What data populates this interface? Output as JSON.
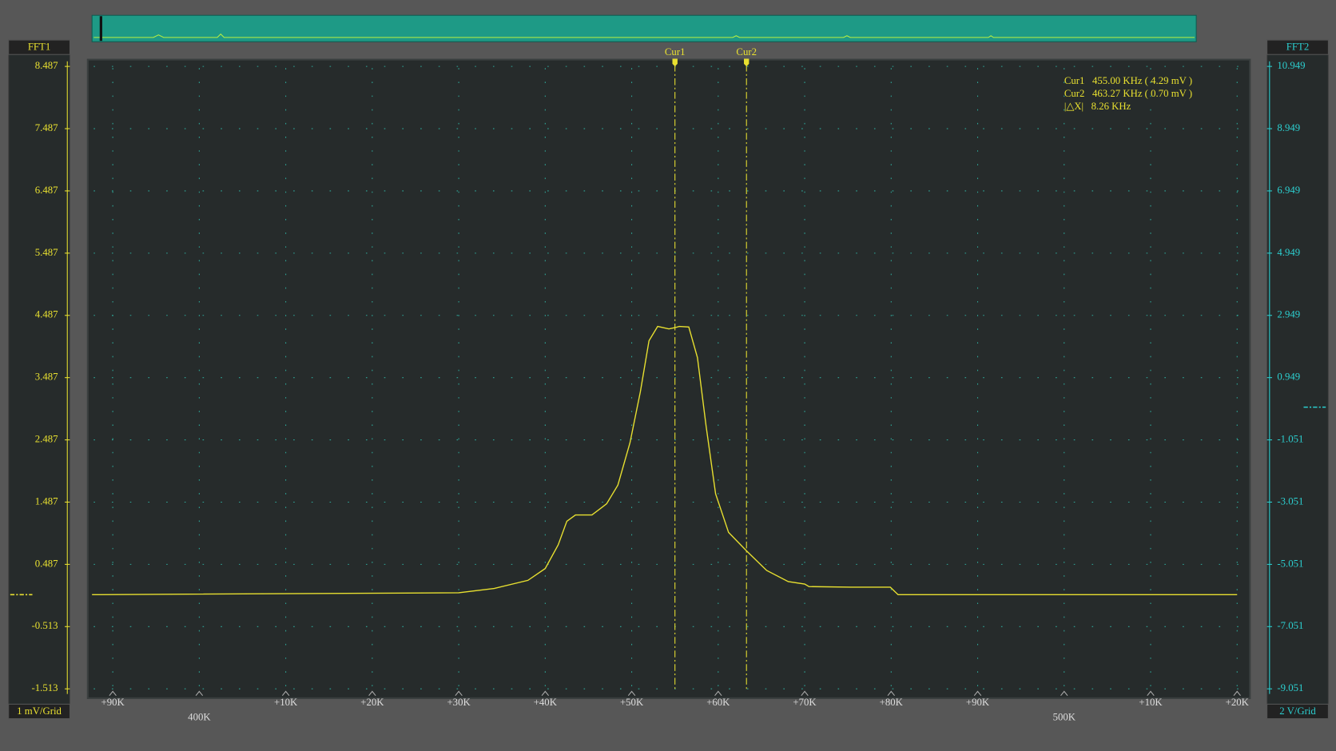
{
  "chart_data": {
    "type": "line",
    "left_panel": "FFT1",
    "right_panel": "FFT2",
    "left_scale": "1 mV/Grid",
    "right_scale": "2 V/Grid",
    "x": [
      387.6,
      430,
      434.1,
      438,
      440,
      441.5,
      442.5,
      443.5,
      445.4,
      447.1,
      448.4,
      449.8,
      451,
      452,
      453,
      454.3,
      455,
      455.5,
      456.6,
      457.6,
      458.6,
      459.7,
      461.2,
      463.3,
      465.6,
      468.1,
      470,
      470.5,
      475.4,
      479.9,
      480.8,
      505,
      520
    ],
    "values": [
      0,
      0.03,
      0.1,
      0.23,
      0.42,
      0.8,
      1.18,
      1.28,
      1.28,
      1.46,
      1.76,
      2.44,
      3.26,
      4.08,
      4.31,
      4.27,
      4.29,
      4.31,
      4.3,
      3.81,
      2.71,
      1.62,
      1.0,
      0.7,
      0.39,
      0.21,
      0.17,
      0.13,
      0.12,
      0.12,
      0,
      0,
      0
    ],
    "color": "#e8e030",
    "xlim": [
      387.6,
      520.3
    ],
    "xticks": [
      {
        "value": 390,
        "label": "+90K"
      },
      {
        "value": 400,
        "label": "400K"
      },
      {
        "value": 410,
        "label": "+10K"
      },
      {
        "value": 420,
        "label": "+20K"
      },
      {
        "value": 430,
        "label": "+30K"
      },
      {
        "value": 440,
        "label": "+40K"
      },
      {
        "value": 450,
        "label": "+50K"
      },
      {
        "value": 460,
        "label": "+60K"
      },
      {
        "value": 470,
        "label": "+70K"
      },
      {
        "value": 480,
        "label": "+80K"
      },
      {
        "value": 490,
        "label": "+90K"
      },
      {
        "value": 500,
        "label": "500K"
      },
      {
        "value": 510,
        "label": "+10K"
      },
      {
        "value": 520,
        "label": "+20K"
      }
    ],
    "ylim": [
      -1.513,
      8.487
    ],
    "yticks": [
      8.487,
      7.487,
      6.487,
      5.487,
      4.487,
      3.487,
      2.487,
      1.487,
      0.487,
      -0.513,
      -1.513
    ],
    "y2lim": [
      -9.051,
      10.949
    ],
    "y2ticks": [
      10.949,
      8.949,
      6.949,
      4.949,
      2.949,
      0.949,
      -1.051,
      -3.051,
      -5.051,
      -7.051,
      -9.051
    ],
    "grid": true,
    "cursors": [
      {
        "name": "Cur1",
        "x": 455.0
      },
      {
        "name": "Cur2",
        "x": 463.27
      }
    ],
    "readout": [
      "Cur1   455.00 KHz ( 4.29 mV )",
      "Cur2   463.27 KHz ( 0.70 mV )",
      "|△X|   8.26 KHz"
    ]
  }
}
